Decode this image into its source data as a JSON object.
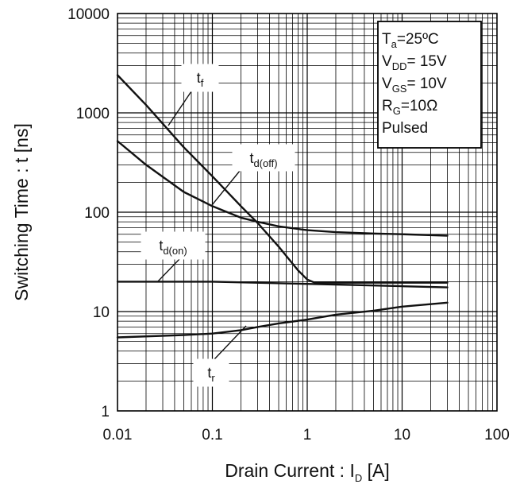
{
  "chart_data": {
    "type": "line",
    "x_scale": "log",
    "y_scale": "log",
    "xlim": [
      0.01,
      100
    ],
    "ylim": [
      1,
      10000
    ],
    "grid": true,
    "xlabel": {
      "main": "Drain Current : I",
      "sub": "D",
      "unit": " [A]"
    },
    "ylabel": "Switching Time : t [ns]",
    "x_ticks": [
      "0.01",
      "0.1",
      "1",
      "10",
      "100"
    ],
    "y_ticks": [
      "1",
      "10",
      "100",
      "1000",
      "10000"
    ],
    "conditions": [
      {
        "base": "T",
        "sub": "a",
        "rest": "=25ºC"
      },
      {
        "base": "V",
        "sub": "DD",
        "rest": "= 15V"
      },
      {
        "base": "V",
        "sub": "GS",
        "rest": "= 10V"
      },
      {
        "base": "R",
        "sub": "G",
        "rest": "=10Ω"
      },
      {
        "base": "Pulsed",
        "sub": "",
        "rest": ""
      }
    ],
    "series": [
      {
        "name": "t_f",
        "label_base": "t",
        "label_sub": "f",
        "x": [
          0.01,
          0.02,
          0.05,
          0.1,
          0.2,
          0.3,
          0.5,
          0.8,
          1.0,
          1.2,
          2,
          5,
          10,
          30
        ],
        "y": [
          2400,
          1200,
          450,
          230,
          115,
          78,
          45,
          26,
          21,
          19.5,
          19.5,
          19.5,
          19.5,
          19.5
        ]
      },
      {
        "name": "t_d(off)",
        "label_base": "t",
        "label_sub": "d(off)",
        "x": [
          0.01,
          0.02,
          0.05,
          0.1,
          0.2,
          0.3,
          0.5,
          1,
          2,
          5,
          10,
          30
        ],
        "y": [
          520,
          300,
          160,
          115,
          88,
          80,
          72,
          66,
          63,
          61,
          60,
          58
        ]
      },
      {
        "name": "t_d(on)",
        "label_base": "t",
        "label_sub": "d(on)",
        "x": [
          0.01,
          0.1,
          1,
          10,
          30
        ],
        "y": [
          20,
          20,
          19,
          18,
          17.5
        ]
      },
      {
        "name": "t_r",
        "label_base": "t",
        "label_sub": "r",
        "x": [
          0.01,
          0.05,
          0.1,
          0.2,
          0.3,
          0.5,
          1,
          2,
          5,
          10,
          30
        ],
        "y": [
          5.5,
          5.8,
          6.0,
          6.5,
          7.0,
          7.6,
          8.3,
          9.3,
          10.2,
          11.2,
          12.3
        ]
      }
    ]
  }
}
